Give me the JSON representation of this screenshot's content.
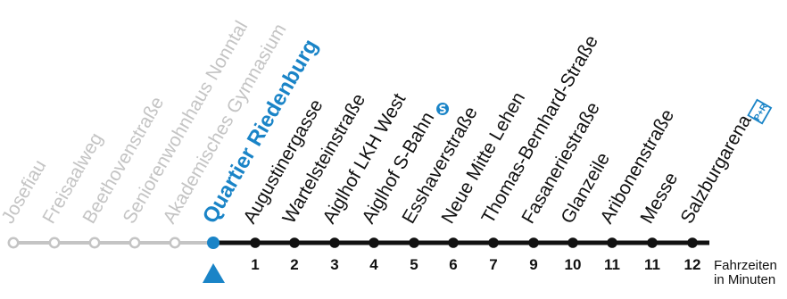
{
  "line": {
    "past_color": "#c4c4c4",
    "current_color": "#1a84c7",
    "next_color": "#111111"
  },
  "stops_past": [
    "Josefiau",
    "Freisaalweg",
    "Beethovenstraße",
    "Seniorenwohnhaus Nonntal",
    "Akademisches Gymnasium"
  ],
  "stop_current": "Quartier Riedenburg",
  "stops_next": [
    {
      "name": "Augustinergasse",
      "minutes": "1"
    },
    {
      "name": "Wartelsteinstraße",
      "minutes": "2"
    },
    {
      "name": "Aiglhof LKH West",
      "minutes": "3"
    },
    {
      "name": "Aiglhof S-Bahn",
      "minutes": "4",
      "icon": "s-bahn-icon"
    },
    {
      "name": "Esshaverstraße",
      "minutes": "5"
    },
    {
      "name": "Neue Mitte Lehen",
      "minutes": "6"
    },
    {
      "name": "Thomas-Bernhard-Straße",
      "minutes": "7"
    },
    {
      "name": "Fasaneriestraße",
      "minutes": "9"
    },
    {
      "name": "Glanzeile",
      "minutes": "10"
    },
    {
      "name": "Aribonenstraße",
      "minutes": "11"
    },
    {
      "name": "Messe",
      "minutes": "11"
    },
    {
      "name": "Salzburgarena",
      "minutes": "12",
      "icon": "park-and-ride-icon"
    }
  ],
  "pr_icon_text": "P+R",
  "legend": {
    "line1": "Fahrzeiten",
    "line2": "in Minuten"
  }
}
